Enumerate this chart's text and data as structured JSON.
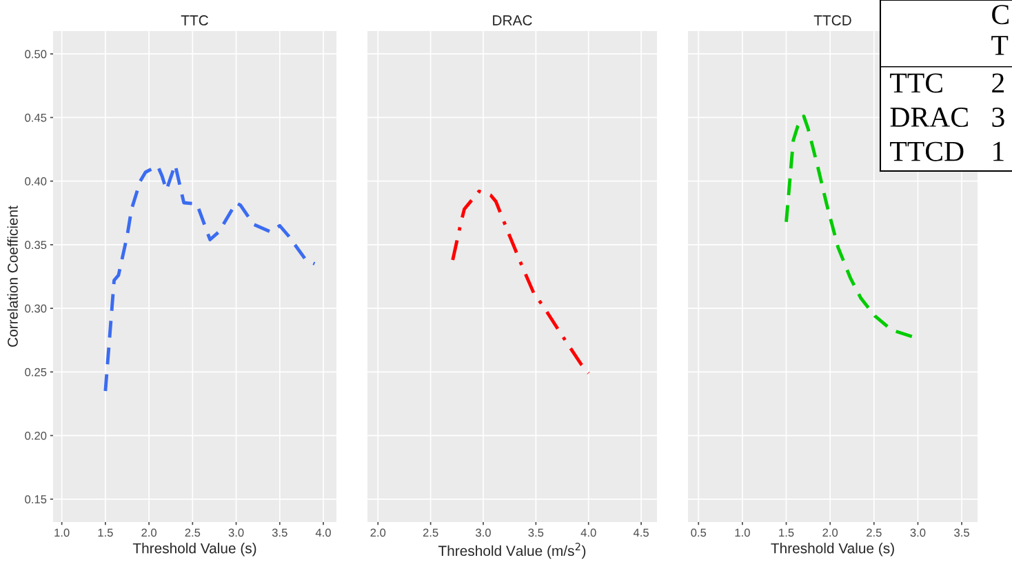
{
  "chart_data": [
    {
      "type": "line",
      "title": "TTC",
      "xlabel": "Threshold Value (s)",
      "ylabel": "Correlation Coefficient",
      "grid": true,
      "line_style": "dashed",
      "xlim": [
        0.9,
        4.15
      ],
      "ylim": [
        0.132,
        0.518
      ],
      "xticks": [
        {
          "value": 1.0,
          "label": "1.0"
        },
        1.5,
        {
          "value": 2.0,
          "label": "2.0"
        },
        2.5,
        {
          "value": 3.0,
          "label": "3.0"
        },
        3.5,
        {
          "value": 4.0,
          "label": "4.0"
        }
      ],
      "yticks": [
        {
          "value": 0.15,
          "label": "0.15"
        },
        {
          "value": 0.2,
          "label": "0.20"
        },
        0.25,
        {
          "value": 0.3,
          "label": "0.30"
        },
        0.35,
        {
          "value": 0.4,
          "label": "0.40"
        },
        0.45,
        {
          "value": 0.5,
          "label": "0.50"
        }
      ],
      "series": [
        {
          "color": "#3b6cf0",
          "x": [
            1.5,
            1.6,
            1.65,
            1.75,
            1.8,
            1.9,
            1.96,
            2.1,
            2.15,
            2.2,
            2.25,
            2.3,
            2.4,
            2.55,
            2.7,
            2.8,
            3.0,
            3.05,
            3.2,
            3.4,
            3.5,
            3.6,
            3.8,
            3.9
          ],
          "values": [
            0.235,
            0.322,
            0.326,
            0.357,
            0.378,
            0.4,
            0.407,
            0.412,
            0.404,
            0.393,
            0.403,
            0.413,
            0.383,
            0.382,
            0.354,
            0.36,
            0.383,
            0.381,
            0.366,
            0.36,
            0.365,
            0.357,
            0.338,
            0.335
          ]
        }
      ]
    },
    {
      "type": "line",
      "title": "DRAC",
      "xlabel": "Threshold Value (m/s$^{2}$)",
      "grid": true,
      "line_style": "dashdot",
      "tick_labels": "x",
      "xlim": [
        1.9,
        4.65
      ],
      "ylim": [
        0.132,
        0.518
      ],
      "xticks": [
        {
          "value": 2.0,
          "label": "2.0"
        },
        2.5,
        {
          "value": 3.0,
          "label": "3.0"
        },
        3.5,
        {
          "value": 4.0,
          "label": "4.0"
        },
        4.5
      ],
      "series": [
        {
          "color": "#ff0000",
          "x": [
            2.71,
            2.75,
            2.79,
            2.82,
            2.96,
            3.07,
            3.12,
            3.25,
            3.38,
            3.49,
            3.56,
            3.73,
            3.93,
            4.0
          ],
          "values": [
            0.338,
            0.353,
            0.368,
            0.378,
            0.392,
            0.389,
            0.384,
            0.357,
            0.331,
            0.31,
            0.303,
            0.281,
            0.256,
            0.249
          ]
        }
      ]
    },
    {
      "type": "line",
      "title": "TTCD",
      "xlabel": "Threshold Value (s)",
      "grid": true,
      "line_style": "dashed",
      "tick_labels": "x",
      "xlim": [
        0.38,
        3.68
      ],
      "ylim": [
        0.132,
        0.518
      ],
      "xticks": [
        0.5,
        {
          "value": 1.0,
          "label": "1.0"
        },
        1.5,
        {
          "value": 2.0,
          "label": "2.0"
        },
        2.5,
        {
          "value": 3.0,
          "label": "3.0"
        },
        3.5
      ],
      "series": [
        {
          "color": "#00cc00",
          "x": [
            1.5,
            1.54,
            1.58,
            1.63,
            1.7,
            1.75,
            1.86,
            1.96,
            2.09,
            2.23,
            2.35,
            2.51,
            2.7,
            2.97
          ],
          "values": [
            0.368,
            0.4,
            0.432,
            0.443,
            0.451,
            0.441,
            0.411,
            0.382,
            0.348,
            0.324,
            0.308,
            0.294,
            0.283,
            0.277
          ]
        }
      ]
    },
    {
      "type": "other",
      "annotations": [
        "C",
        "T",
        "TTC",
        "2",
        "DRAC",
        "3",
        "TTCD",
        "1"
      ]
    }
  ]
}
